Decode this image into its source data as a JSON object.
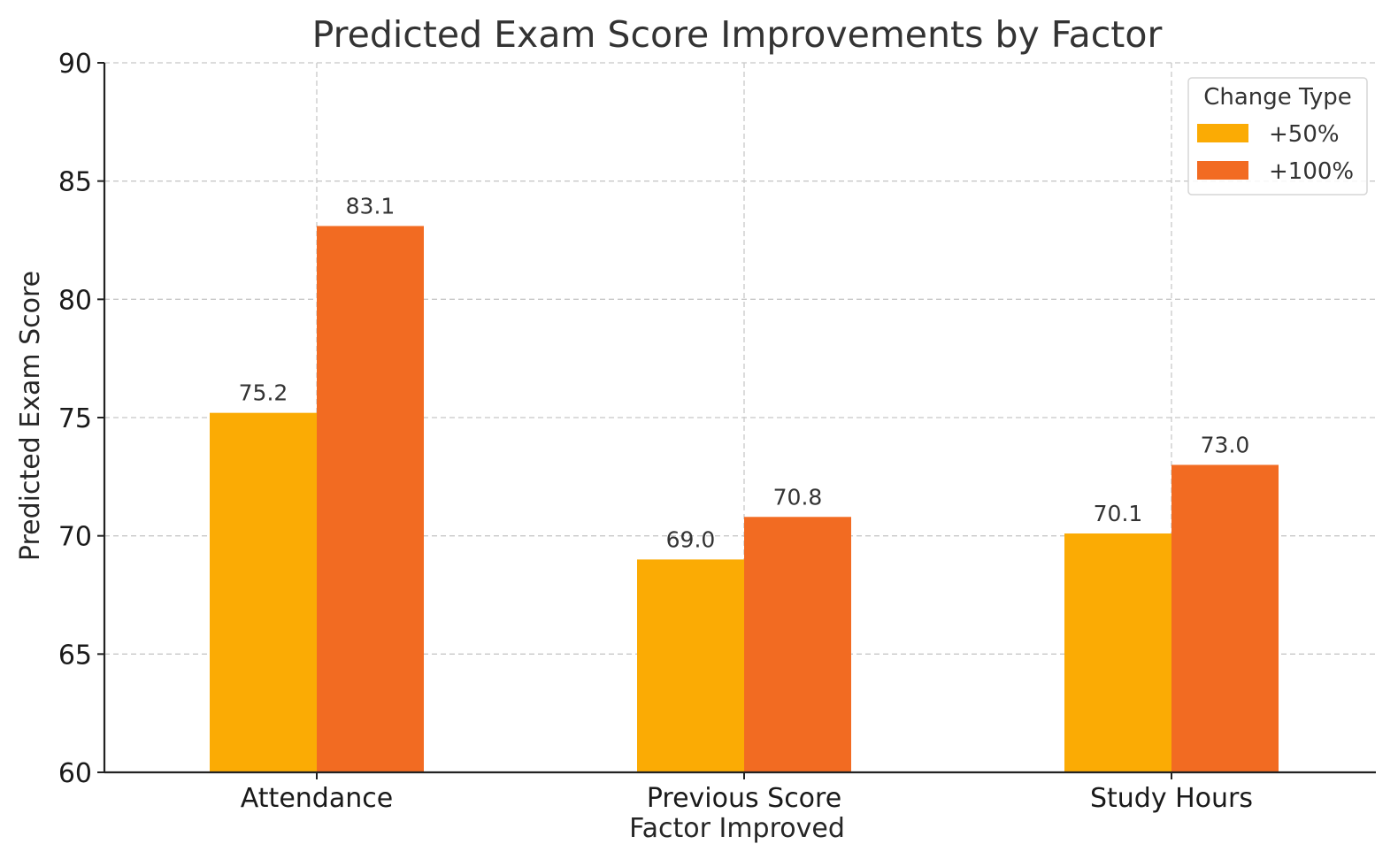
{
  "chart_data": {
    "type": "bar",
    "title": "Predicted Exam Score Improvements by Factor",
    "xlabel": "Factor Improved",
    "ylabel": "Predicted Exam Score",
    "categories": [
      "Attendance",
      "Previous Score",
      "Study Hours"
    ],
    "series": [
      {
        "name": "+50%",
        "color": "#FBAB04",
        "values": [
          75.2,
          69.0,
          70.1
        ],
        "labels": [
          "75.2",
          "69.0",
          "70.1"
        ]
      },
      {
        "name": "+100%",
        "color": "#F26B22",
        "values": [
          83.1,
          70.8,
          73.0
        ],
        "labels": [
          "83.1",
          "70.8",
          "73.0"
        ]
      }
    ],
    "ylim": [
      60,
      90
    ],
    "yticks": [
      60,
      65,
      70,
      75,
      80,
      85,
      90
    ],
    "grid": true,
    "legend": {
      "title": "Change Type",
      "placement": "top-right"
    }
  }
}
